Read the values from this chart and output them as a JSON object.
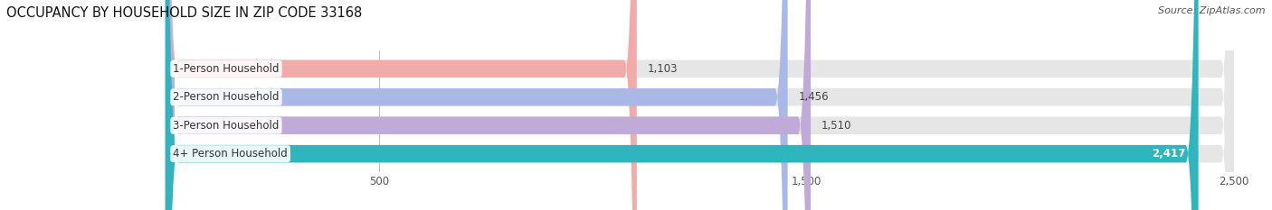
{
  "title": "OCCUPANCY BY HOUSEHOLD SIZE IN ZIP CODE 33168",
  "source": "Source: ZipAtlas.com",
  "categories": [
    "1-Person Household",
    "2-Person Household",
    "3-Person Household",
    "4+ Person Household"
  ],
  "values": [
    1103,
    1456,
    1510,
    2417
  ],
  "bar_colors": [
    "#f2aaaa",
    "#aab8e8",
    "#c0aad8",
    "#2eb5be"
  ],
  "xlim": [
    0,
    2500
  ],
  "xticks": [
    500,
    1500,
    2500
  ],
  "label_fontsize": 8.5,
  "value_fontsize": 8.5,
  "title_fontsize": 10.5,
  "source_fontsize": 8,
  "bar_height": 0.62,
  "background_color": "#ffffff",
  "bg_bar_color": "#e6e6e6"
}
